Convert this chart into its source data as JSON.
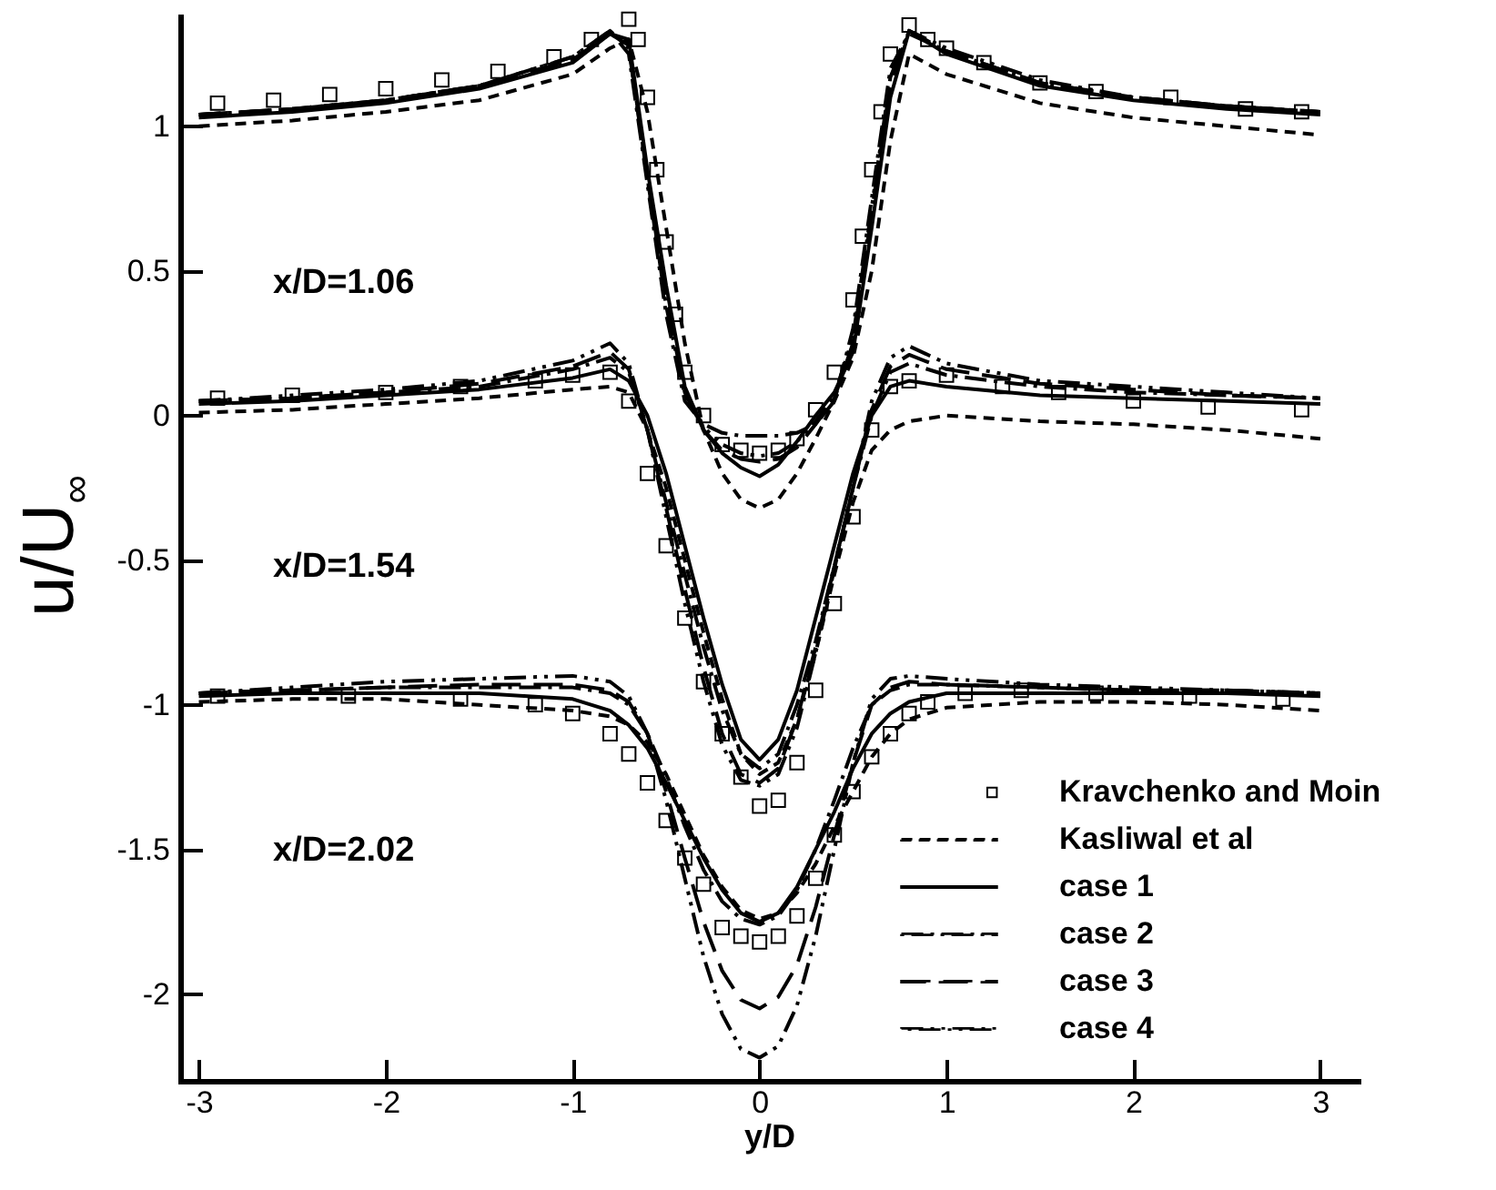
{
  "chart_data": {
    "type": "line",
    "xlabel": "y/D",
    "ylabel": "u/U$_{∞}$",
    "xlim": [
      -3.1,
      3.2
    ],
    "ylim": [
      -2.3,
      1.38
    ],
    "xticks": [
      -3,
      -2,
      -1,
      0,
      1,
      2,
      3
    ],
    "yticks": [
      -2,
      -1.5,
      -1,
      -0.5,
      0,
      0.5,
      1
    ],
    "grid": false,
    "legend": "bottom right",
    "annotations": [
      "x/D=1.06",
      "x/D=1.54",
      "x/D=2.02"
    ],
    "x": [
      -3,
      -2.5,
      -2,
      -1.5,
      -1,
      -0.8,
      -0.7,
      -0.6,
      -0.5,
      -0.4,
      -0.3,
      -0.2,
      -0.1,
      0,
      0.1,
      0.2,
      0.3,
      0.4,
      0.5,
      0.6,
      0.7,
      0.8,
      1,
      1.5,
      2,
      2.5,
      3
    ],
    "series": [
      {
        "name": "Kravchenko and Moin",
        "type": "scatter",
        "marker": "square",
        "color": "#000000",
        "x": [
          -2.9,
          -2.6,
          -2.3,
          -2,
          -1.7,
          -1.4,
          -1.1,
          -0.9,
          -0.7,
          -0.65,
          -0.6,
          -0.55,
          -0.5,
          -0.45,
          -0.4,
          -0.3,
          -0.2,
          -0.1,
          0,
          0.1,
          0.2,
          0.3,
          0.4,
          0.5,
          0.55,
          0.6,
          0.65,
          0.7,
          0.8,
          0.9,
          1.0,
          1.2,
          1.5,
          1.8,
          2.2,
          2.6,
          2.9,
          -2.9,
          -2.5,
          -2,
          -1.6,
          -1.2,
          -1,
          -0.8,
          -0.7,
          -0.6,
          -0.5,
          -0.4,
          -0.3,
          -0.2,
          -0.1,
          0,
          0.1,
          0.2,
          0.3,
          0.4,
          0.5,
          0.6,
          0.7,
          0.8,
          1.0,
          1.3,
          1.6,
          2,
          2.4,
          2.9,
          -2.9,
          -2.2,
          -1.6,
          -1.2,
          -1,
          -0.8,
          -0.7,
          -0.6,
          -0.5,
          -0.4,
          -0.3,
          -0.2,
          -0.1,
          0,
          0.1,
          0.2,
          0.3,
          0.4,
          0.5,
          0.6,
          0.7,
          0.8,
          0.9,
          1.1,
          1.4,
          1.8,
          2.3,
          2.8
        ],
        "values": [
          1.08,
          1.09,
          1.11,
          1.13,
          1.16,
          1.19,
          1.24,
          1.3,
          1.37,
          1.3,
          1.1,
          0.85,
          0.6,
          0.35,
          0.15,
          0.0,
          -0.1,
          -0.12,
          -0.13,
          -0.12,
          -0.08,
          0.02,
          0.15,
          0.4,
          0.62,
          0.85,
          1.05,
          1.25,
          1.35,
          1.3,
          1.27,
          1.22,
          1.15,
          1.12,
          1.1,
          1.06,
          1.05,
          0.06,
          0.07,
          0.08,
          0.1,
          0.12,
          0.14,
          0.15,
          0.05,
          -0.2,
          -0.45,
          -0.7,
          -0.92,
          -1.1,
          -1.25,
          -1.35,
          -1.33,
          -1.2,
          -0.95,
          -0.65,
          -0.35,
          -0.05,
          0.1,
          0.12,
          0.14,
          0.1,
          0.08,
          0.05,
          0.03,
          0.02,
          -0.97,
          -0.97,
          -0.98,
          -1.0,
          -1.03,
          -1.1,
          -1.17,
          -1.27,
          -1.4,
          -1.53,
          -1.62,
          -1.77,
          -1.8,
          -1.82,
          -1.8,
          -1.73,
          -1.6,
          -1.45,
          -1.3,
          -1.18,
          -1.1,
          -1.03,
          -0.99,
          -0.96,
          -0.95,
          -0.96,
          -0.97,
          -0.98
        ]
      },
      {
        "name": "Kasliwal et al",
        "line_style": "dashed",
        "color": "#000000",
        "values": [
          1.0,
          1.02,
          1.05,
          1.09,
          1.18,
          1.27,
          1.3,
          1.05,
          0.65,
          0.25,
          -0.05,
          -0.2,
          -0.29,
          -0.32,
          -0.29,
          -0.2,
          -0.08,
          0.05,
          0.2,
          0.5,
          0.95,
          1.25,
          1.18,
          1.08,
          1.03,
          1.0,
          0.97
        ]
      },
      {
        "name": "case 1",
        "line_style": "solid",
        "color": "#000000",
        "values": [
          1.03,
          1.05,
          1.08,
          1.13,
          1.22,
          1.32,
          1.3,
          0.85,
          0.45,
          0.1,
          -0.05,
          -0.13,
          -0.18,
          -0.21,
          -0.17,
          -0.09,
          0.0,
          0.08,
          0.22,
          0.65,
          1.1,
          1.33,
          1.25,
          1.14,
          1.09,
          1.06,
          1.04
        ]
      },
      {
        "name": "case 2",
        "line_style": "dashdot",
        "color": "#000000",
        "values": [
          1.04,
          1.06,
          1.09,
          1.14,
          1.24,
          1.33,
          1.25,
          0.8,
          0.35,
          0.05,
          -0.03,
          -0.06,
          -0.07,
          -0.07,
          -0.07,
          -0.06,
          -0.03,
          0.05,
          0.3,
          0.75,
          1.2,
          1.32,
          1.26,
          1.15,
          1.1,
          1.07,
          1.05
        ]
      },
      {
        "name": "case 3",
        "line_style": "longdash",
        "color": "#000000",
        "values": [
          1.04,
          1.06,
          1.09,
          1.14,
          1.23,
          1.32,
          1.28,
          0.82,
          0.4,
          0.08,
          -0.05,
          -0.12,
          -0.15,
          -0.16,
          -0.15,
          -0.11,
          -0.03,
          0.06,
          0.25,
          0.7,
          1.15,
          1.33,
          1.26,
          1.15,
          1.1,
          1.07,
          1.05
        ]
      },
      {
        "name": "case 4",
        "line_style": "dashdotdot",
        "color": "#000000",
        "values": [
          1.04,
          1.06,
          1.09,
          1.14,
          1.24,
          1.33,
          1.27,
          0.82,
          0.38,
          0.07,
          -0.04,
          -0.1,
          -0.13,
          -0.14,
          -0.13,
          -0.09,
          -0.02,
          0.07,
          0.27,
          0.72,
          1.17,
          1.33,
          1.27,
          1.16,
          1.1,
          1.07,
          1.05
        ]
      },
      {
        "line_style": "dashed",
        "color": "#000000",
        "values": [
          0.01,
          0.02,
          0.04,
          0.06,
          0.09,
          0.1,
          0.08,
          -0.05,
          -0.25,
          -0.5,
          -0.75,
          -0.98,
          -1.17,
          -1.24,
          -1.2,
          -1.05,
          -0.82,
          -0.55,
          -0.3,
          -0.12,
          -0.05,
          -0.02,
          0.0,
          -0.02,
          -0.03,
          -0.05,
          -0.08
        ]
      },
      {
        "line_style": "solid",
        "color": "#000000",
        "values": [
          0.04,
          0.05,
          0.07,
          0.09,
          0.13,
          0.16,
          0.12,
          0.0,
          -0.2,
          -0.45,
          -0.7,
          -0.93,
          -1.12,
          -1.19,
          -1.12,
          -0.95,
          -0.7,
          -0.45,
          -0.2,
          0.0,
          0.1,
          0.12,
          0.1,
          0.07,
          0.06,
          0.05,
          0.04
        ]
      },
      {
        "line_style": "dashdot",
        "color": "#000000",
        "values": [
          0.05,
          0.06,
          0.08,
          0.1,
          0.16,
          0.2,
          0.15,
          -0.05,
          -0.3,
          -0.55,
          -0.8,
          -1.02,
          -1.17,
          -1.22,
          -1.17,
          -1.0,
          -0.78,
          -0.52,
          -0.25,
          0.0,
          0.15,
          0.18,
          0.14,
          0.1,
          0.08,
          0.07,
          0.06
        ]
      },
      {
        "line_style": "longdash",
        "color": "#000000",
        "values": [
          0.05,
          0.06,
          0.08,
          0.11,
          0.17,
          0.22,
          0.16,
          -0.05,
          -0.32,
          -0.6,
          -0.87,
          -1.1,
          -1.24,
          -1.27,
          -1.22,
          -1.05,
          -0.8,
          -0.52,
          -0.25,
          0.02,
          0.17,
          0.21,
          0.16,
          0.11,
          0.09,
          0.07,
          0.06
        ]
      },
      {
        "line_style": "dashdotdot",
        "color": "#000000",
        "values": [
          0.05,
          0.07,
          0.09,
          0.12,
          0.19,
          0.25,
          0.18,
          -0.05,
          -0.35,
          -0.65,
          -0.92,
          -1.14,
          -1.26,
          -1.28,
          -1.24,
          -1.08,
          -0.82,
          -0.53,
          -0.25,
          0.05,
          0.2,
          0.24,
          0.18,
          0.12,
          0.1,
          0.08,
          0.06
        ]
      },
      {
        "line_style": "dashed",
        "color": "#000000",
        "values": [
          -0.99,
          -0.98,
          -0.98,
          -1.0,
          -1.02,
          -1.04,
          -1.07,
          -1.13,
          -1.24,
          -1.38,
          -1.52,
          -1.63,
          -1.71,
          -1.74,
          -1.72,
          -1.65,
          -1.55,
          -1.42,
          -1.3,
          -1.18,
          -1.1,
          -1.05,
          -1.01,
          -0.99,
          -0.99,
          -1.0,
          -1.02
        ]
      },
      {
        "line_style": "solid",
        "color": "#000000",
        "values": [
          -0.97,
          -0.96,
          -0.96,
          -0.96,
          -0.98,
          -1.02,
          -1.07,
          -1.15,
          -1.27,
          -1.4,
          -1.53,
          -1.64,
          -1.72,
          -1.75,
          -1.72,
          -1.63,
          -1.5,
          -1.37,
          -1.22,
          -1.1,
          -1.03,
          -0.99,
          -0.96,
          -0.96,
          -0.96,
          -0.96,
          -0.97
        ]
      },
      {
        "line_style": "dashdot",
        "color": "#000000",
        "values": [
          -0.96,
          -0.95,
          -0.94,
          -0.94,
          -0.94,
          -0.96,
          -1.0,
          -1.1,
          -1.25,
          -1.42,
          -1.57,
          -1.68,
          -1.74,
          -1.76,
          -1.73,
          -1.64,
          -1.5,
          -1.33,
          -1.15,
          -1.0,
          -0.95,
          -0.93,
          -0.93,
          -0.94,
          -0.95,
          -0.95,
          -0.96
        ]
      },
      {
        "line_style": "longdash",
        "color": "#000000",
        "values": [
          -0.96,
          -0.95,
          -0.94,
          -0.93,
          -0.93,
          -0.95,
          -0.99,
          -1.1,
          -1.3,
          -1.53,
          -1.75,
          -1.92,
          -2.02,
          -2.05,
          -2.01,
          -1.9,
          -1.7,
          -1.45,
          -1.2,
          -1.0,
          -0.94,
          -0.92,
          -0.93,
          -0.94,
          -0.95,
          -0.95,
          -0.96
        ]
      },
      {
        "line_style": "dashdotdot",
        "color": "#000000",
        "values": [
          -0.96,
          -0.94,
          -0.92,
          -0.91,
          -0.9,
          -0.92,
          -0.97,
          -1.1,
          -1.33,
          -1.6,
          -1.87,
          -2.07,
          -2.19,
          -2.22,
          -2.18,
          -2.04,
          -1.8,
          -1.5,
          -1.2,
          -0.98,
          -0.91,
          -0.9,
          -0.91,
          -0.93,
          -0.94,
          -0.95,
          -0.96
        ]
      }
    ]
  }
}
